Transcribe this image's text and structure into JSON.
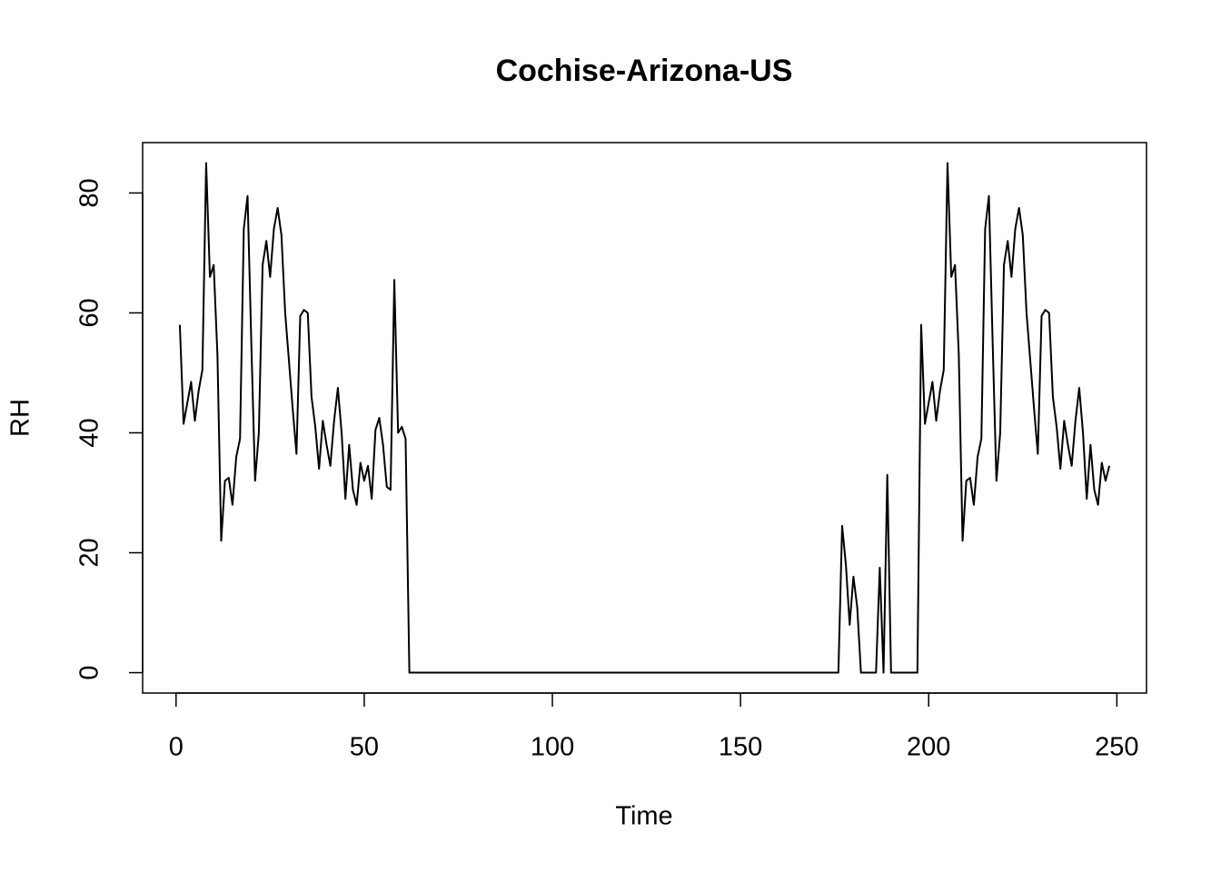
{
  "chart_data": {
    "type": "line",
    "title": "Cochise-Arizona-US",
    "xlabel": "Time",
    "ylabel": "RH",
    "color": "#000000",
    "x": [
      1,
      2,
      3,
      4,
      5,
      6,
      7,
      8,
      9,
      10,
      11,
      12,
      13,
      14,
      15,
      16,
      17,
      18,
      19,
      20,
      21,
      22,
      23,
      24,
      25,
      26,
      27,
      28,
      29,
      30,
      31,
      32,
      33,
      34,
      35,
      36,
      37,
      38,
      39,
      40,
      41,
      42,
      43,
      44,
      45,
      46,
      47,
      48,
      49,
      50,
      51,
      52,
      53,
      54,
      55,
      56,
      57,
      58,
      59,
      60,
      61,
      62,
      63,
      64,
      65,
      66,
      67,
      68,
      69,
      70,
      71,
      72,
      73,
      74,
      75,
      76,
      77,
      78,
      79,
      80,
      81,
      82,
      83,
      84,
      85,
      86,
      87,
      88,
      89,
      90,
      91,
      92,
      93,
      94,
      95,
      96,
      97,
      98,
      99,
      100,
      101,
      102,
      103,
      104,
      105,
      106,
      107,
      108,
      109,
      110,
      111,
      112,
      113,
      114,
      115,
      116,
      117,
      118,
      119,
      120,
      121,
      122,
      123,
      124,
      125,
      126,
      127,
      128,
      129,
      130,
      131,
      132,
      133,
      134,
      135,
      136,
      137,
      138,
      139,
      140,
      141,
      142,
      143,
      144,
      145,
      146,
      147,
      148,
      149,
      150,
      151,
      152,
      153,
      154,
      155,
      156,
      157,
      158,
      159,
      160,
      161,
      162,
      163,
      164,
      165,
      166,
      167,
      168,
      169,
      170,
      171,
      172,
      173,
      174,
      175,
      176,
      177,
      178,
      179,
      180,
      181,
      182,
      183,
      184,
      185,
      186,
      187,
      188,
      189,
      190,
      191,
      192,
      193,
      194,
      195,
      196,
      197,
      198,
      199,
      200,
      201,
      202,
      203,
      204,
      205,
      206,
      207,
      208,
      209,
      210,
      211,
      212,
      213,
      214,
      215,
      216,
      217,
      218,
      219,
      220,
      221,
      222,
      223,
      224,
      225,
      226,
      227,
      228,
      229,
      230,
      231,
      232,
      233,
      234,
      235,
      236,
      237,
      238,
      239,
      240,
      241,
      242,
      243,
      244,
      245,
      246,
      247,
      248
    ],
    "values": [
      58,
      41.5,
      45,
      48.5,
      42,
      47,
      50.5,
      85,
      66,
      68,
      53,
      22,
      32,
      32.5,
      28,
      36,
      39,
      74,
      79.5,
      55,
      32,
      40,
      68,
      72,
      66,
      74,
      77.5,
      73,
      60,
      52,
      44,
      36.5,
      59.5,
      60.5,
      60,
      46,
      41,
      34,
      42,
      38,
      34.5,
      42,
      47.5,
      40,
      29,
      38,
      30.5,
      28,
      35,
      32,
      34.5,
      29,
      40.5,
      42.5,
      38,
      31,
      30.5,
      65.5,
      40,
      41,
      39,
      0,
      0,
      0,
      0,
      0,
      0,
      0,
      0,
      0,
      0,
      0,
      0,
      0,
      0,
      0,
      0,
      0,
      0,
      0,
      0,
      0,
      0,
      0,
      0,
      0,
      0,
      0,
      0,
      0,
      0,
      0,
      0,
      0,
      0,
      0,
      0,
      0,
      0,
      0,
      0,
      0,
      0,
      0,
      0,
      0,
      0,
      0,
      0,
      0,
      0,
      0,
      0,
      0,
      0,
      0,
      0,
      0,
      0,
      0,
      0,
      0,
      0,
      0,
      0,
      0,
      0,
      0,
      0,
      0,
      0,
      0,
      0,
      0,
      0,
      0,
      0,
      0,
      0,
      0,
      0,
      0,
      0,
      0,
      0,
      0,
      0,
      0,
      0,
      0,
      0,
      0,
      0,
      0,
      0,
      0,
      0,
      0,
      0,
      0,
      0,
      0,
      0,
      0,
      0,
      0,
      0,
      0,
      0,
      0,
      0,
      0,
      0,
      0,
      0,
      0,
      24.5,
      18,
      8,
      16,
      11,
      0,
      0,
      0,
      0,
      0,
      17.5,
      0,
      33,
      0,
      0,
      0,
      0,
      0,
      0,
      0,
      0,
      58,
      41.5,
      45,
      48.5,
      42,
      47,
      50.5,
      85,
      66,
      68,
      53,
      22,
      32,
      32.5,
      28,
      36,
      39,
      74,
      79.5,
      55,
      32,
      40,
      68,
      72,
      66,
      74,
      77.5,
      73,
      60,
      52,
      44,
      36.5,
      59.5,
      60.5,
      60,
      46,
      41,
      34,
      42,
      38,
      34.5,
      42,
      47.5,
      40,
      29,
      38,
      30.5,
      28,
      35,
      32,
      34.5
    ],
    "xlim": [
      -8.88,
      257.88
    ],
    "xticks": [
      0,
      50,
      100,
      150,
      200,
      250
    ],
    "ylim": [
      -3.4,
      88.4
    ],
    "yticks": [
      0,
      20,
      40,
      60,
      80
    ]
  }
}
